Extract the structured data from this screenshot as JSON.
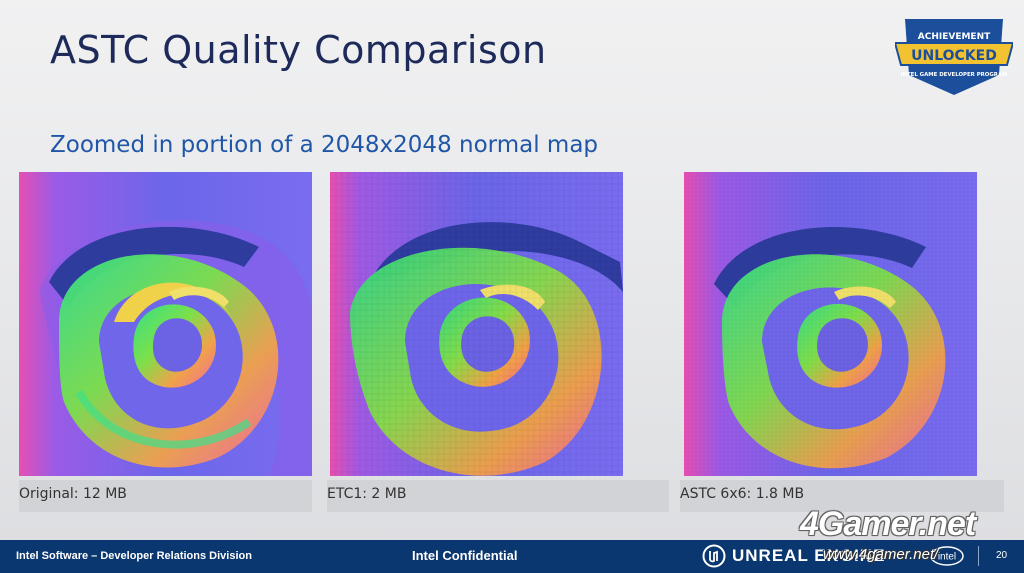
{
  "slide": {
    "title": "ASTC Quality Comparison",
    "subtitle": "Zoomed in portion of a 2048x2048 normal map"
  },
  "badge": {
    "line1": "ACHIEVEMENT",
    "line2": "UNLOCKED",
    "line3": "INTEL GAME DEVELOPER PROGRAM"
  },
  "panels": [
    {
      "caption": "Original: 12 MB"
    },
    {
      "caption": "ETC1: 2 MB"
    },
    {
      "caption": "ASTC 6x6: 1.8 MB"
    }
  ],
  "footer": {
    "left": "Intel Software – Developer Relations Division",
    "center": "Intel Confidential",
    "engine": "UNREAL ENGINE",
    "page": "20"
  },
  "watermark": {
    "brand": "4Gamer.net",
    "url": "www.4gamer.net/"
  },
  "colors": {
    "title": "#1d2a5a",
    "subtitle": "#1f56a8",
    "footer_bg": "#0b3770"
  },
  "icons": [
    "achievement-badge-icon",
    "unreal-engine-logo-icon",
    "intel-logo-icon"
  ]
}
